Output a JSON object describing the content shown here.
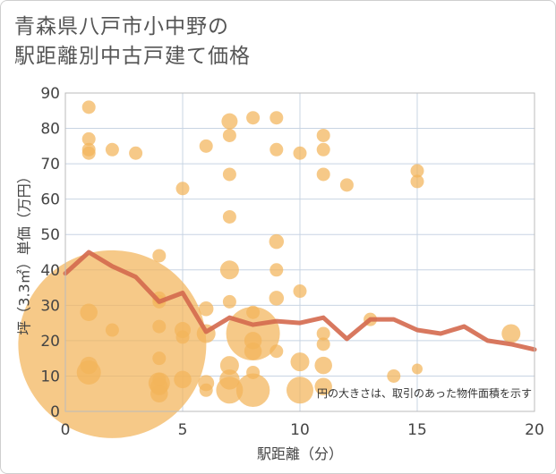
{
  "title_line1": "青森県八戸市小中野の",
  "title_line2": "駅距離別中古戸建て価格",
  "chart_data": {
    "type": "scatter",
    "title": "青森県八戸市小中野の駅距離別中古戸建て価格",
    "xlabel": "駅距離（分）",
    "ylabel": "坪（3.3㎡）単価（万円）",
    "xlim": [
      0,
      20
    ],
    "ylim": [
      0,
      90
    ],
    "x_ticks": [
      0,
      5,
      10,
      15,
      20
    ],
    "y_ticks": [
      0,
      10,
      20,
      30,
      40,
      50,
      60,
      70,
      80,
      90
    ],
    "grid": true,
    "annotation": "円の大きさは、取引のあった物件面積を示す",
    "colors": {
      "bubble": "#f2b45a",
      "line": "#d4694e",
      "grid": "#c8d4e3"
    },
    "points": [
      {
        "x": 1,
        "y": 86,
        "s": 1
      },
      {
        "x": 1,
        "y": 77,
        "s": 1
      },
      {
        "x": 1,
        "y": 74,
        "s": 1
      },
      {
        "x": 1,
        "y": 73,
        "s": 1
      },
      {
        "x": 1,
        "y": 28,
        "s": 1.3
      },
      {
        "x": 1,
        "y": 13,
        "s": 1.3
      },
      {
        "x": 1,
        "y": 11,
        "s": 1.8
      },
      {
        "x": 2,
        "y": 74,
        "s": 1
      },
      {
        "x": 2,
        "y": 23,
        "s": 1
      },
      {
        "x": 2,
        "y": 19,
        "s": 14
      },
      {
        "x": 3,
        "y": 73,
        "s": 1
      },
      {
        "x": 4,
        "y": 44,
        "s": 1
      },
      {
        "x": 4,
        "y": 32,
        "s": 1
      },
      {
        "x": 4,
        "y": 31,
        "s": 1
      },
      {
        "x": 4,
        "y": 24,
        "s": 1
      },
      {
        "x": 4,
        "y": 15,
        "s": 1
      },
      {
        "x": 4,
        "y": 9,
        "s": 1
      },
      {
        "x": 4,
        "y": 8,
        "s": 1.6
      },
      {
        "x": 4,
        "y": 7,
        "s": 1.3
      },
      {
        "x": 4,
        "y": 5,
        "s": 1.3
      },
      {
        "x": 5,
        "y": 63,
        "s": 1
      },
      {
        "x": 5,
        "y": 23,
        "s": 1.2
      },
      {
        "x": 5,
        "y": 21,
        "s": 1
      },
      {
        "x": 5,
        "y": 9,
        "s": 1.3
      },
      {
        "x": 6,
        "y": 75,
        "s": 1
      },
      {
        "x": 6,
        "y": 29,
        "s": 1.1
      },
      {
        "x": 6,
        "y": 22,
        "s": 1.4
      },
      {
        "x": 6,
        "y": 8,
        "s": 1.2
      },
      {
        "x": 6,
        "y": 6,
        "s": 1
      },
      {
        "x": 7,
        "y": 82,
        "s": 1.2
      },
      {
        "x": 7,
        "y": 78,
        "s": 1
      },
      {
        "x": 7,
        "y": 67,
        "s": 1
      },
      {
        "x": 7,
        "y": 55,
        "s": 1
      },
      {
        "x": 7,
        "y": 40,
        "s": 1.4
      },
      {
        "x": 7,
        "y": 31,
        "s": 1
      },
      {
        "x": 7,
        "y": 13,
        "s": 1.4
      },
      {
        "x": 7,
        "y": 9,
        "s": 1.5
      },
      {
        "x": 7,
        "y": 6,
        "s": 2
      },
      {
        "x": 8,
        "y": 83,
        "s": 1
      },
      {
        "x": 8,
        "y": 28,
        "s": 1
      },
      {
        "x": 8,
        "y": 22,
        "s": 4
      },
      {
        "x": 8,
        "y": 20,
        "s": 1.3
      },
      {
        "x": 8,
        "y": 17,
        "s": 1.3
      },
      {
        "x": 8,
        "y": 11,
        "s": 1
      },
      {
        "x": 8,
        "y": 6,
        "s": 2.5
      },
      {
        "x": 9,
        "y": 83,
        "s": 1
      },
      {
        "x": 9,
        "y": 74,
        "s": 1
      },
      {
        "x": 9,
        "y": 48,
        "s": 1.1
      },
      {
        "x": 9,
        "y": 40,
        "s": 1
      },
      {
        "x": 9,
        "y": 32,
        "s": 1.1
      },
      {
        "x": 9,
        "y": 17,
        "s": 1
      },
      {
        "x": 10,
        "y": 73,
        "s": 1
      },
      {
        "x": 10,
        "y": 34,
        "s": 1
      },
      {
        "x": 10,
        "y": 14,
        "s": 1.4
      },
      {
        "x": 10,
        "y": 6,
        "s": 2
      },
      {
        "x": 11,
        "y": 78,
        "s": 1
      },
      {
        "x": 11,
        "y": 74,
        "s": 1
      },
      {
        "x": 11,
        "y": 67,
        "s": 1
      },
      {
        "x": 11,
        "y": 22,
        "s": 1
      },
      {
        "x": 11,
        "y": 19,
        "s": 1
      },
      {
        "x": 11,
        "y": 13,
        "s": 1.3
      },
      {
        "x": 11,
        "y": 7,
        "s": 1.3
      },
      {
        "x": 12,
        "y": 64,
        "s": 1
      },
      {
        "x": 13,
        "y": 26,
        "s": 1
      },
      {
        "x": 14,
        "y": 10,
        "s": 1
      },
      {
        "x": 15,
        "y": 68,
        "s": 1
      },
      {
        "x": 15,
        "y": 65,
        "s": 1
      },
      {
        "x": 15,
        "y": 12,
        "s": 0.8
      },
      {
        "x": 19,
        "y": 22,
        "s": 1.4
      }
    ],
    "trend_line": {
      "x": [
        0,
        1,
        2,
        3,
        4,
        5,
        6,
        7,
        8,
        9,
        10,
        11,
        12,
        13,
        14,
        15,
        16,
        17,
        18,
        19,
        20
      ],
      "y": [
        39,
        45,
        41,
        38,
        31,
        33.5,
        22.5,
        26.5,
        24.5,
        25.5,
        25,
        26.5,
        20.5,
        26,
        26,
        23,
        22,
        24,
        20,
        19,
        17.5
      ]
    }
  }
}
